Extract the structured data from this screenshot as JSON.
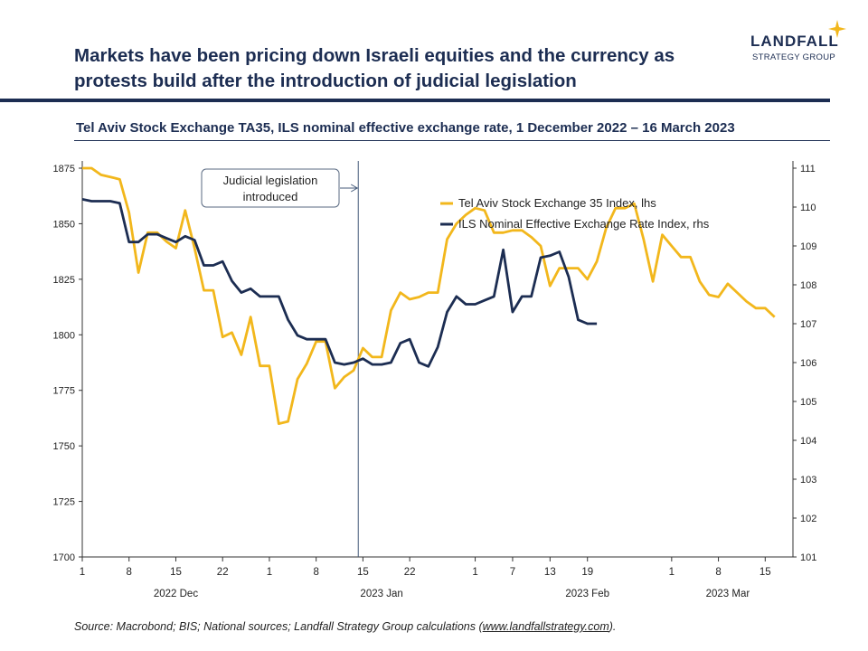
{
  "headline": {
    "line1": "Markets have been pricing down Israeli equities and the currency as",
    "line2": "protests build after the introduction of judicial legislation"
  },
  "logo": {
    "name": "LANDFALL",
    "tagline": "STRATEGY GROUP",
    "accent": "#f2b71c"
  },
  "colors": {
    "navy": "#1c2d52",
    "ta35": "#f2b71c",
    "ils": "#1c2d52",
    "axis": "#333333"
  },
  "source": {
    "prefix": "Source: Macrobond; BIS; National sources; Landfall Strategy Group calculations (",
    "link": "www.landfallstrategy.com",
    "suffix": ")."
  },
  "chart_data": {
    "type": "line",
    "title": "Tel Aviv Stock Exchange TA35, ILS nominal effective exchange rate, 1 December 2022 – 16 March 2023",
    "ylabel": "",
    "ylabel_right": "",
    "x_tick_labels": [
      "1",
      "8",
      "15",
      "22",
      "1",
      "8",
      "15",
      "22",
      "1",
      "7",
      "13",
      "19",
      "1",
      "8",
      "15"
    ],
    "x_tick_index": [
      0,
      5,
      10,
      15,
      20,
      25,
      30,
      35,
      42,
      46,
      50,
      54,
      63,
      68,
      73
    ],
    "month_labels": [
      {
        "label": "2022 Dec",
        "index": 10
      },
      {
        "label": "2023 Jan",
        "index": 32
      },
      {
        "label": "2023 Feb",
        "index": 54
      },
      {
        "label": "2023 Mar",
        "index": 69
      }
    ],
    "ylim_left": [
      1700,
      1875
    ],
    "yticks_left": [
      1700,
      1725,
      1750,
      1775,
      1800,
      1825,
      1850,
      1875
    ],
    "ylim_right": [
      101,
      111
    ],
    "yticks_right": [
      101,
      102,
      103,
      104,
      105,
      106,
      107,
      108,
      109,
      110,
      111
    ],
    "annotation": {
      "text_line1": "Judicial legislation",
      "text_line2": "introduced",
      "index": 29.5
    },
    "legend_position": "top-right",
    "series": [
      {
        "name": "Tel Aviv Stock Exchange 35 Index, lhs",
        "axis": "left",
        "values": [
          1875,
          1875,
          1872,
          1871,
          1870,
          1855,
          1828,
          1846,
          1846,
          1842,
          1839,
          1856,
          1839,
          1820,
          1820,
          1799,
          1801,
          1791,
          1808,
          1786,
          1786,
          1760,
          1761,
          1780,
          1787,
          1797,
          1797,
          1776,
          1781,
          1784,
          1794,
          1790,
          1790,
          1811,
          1819,
          1816,
          1817,
          1819,
          1819,
          1843,
          1850,
          1854,
          1857,
          1856,
          1846,
          1846,
          1847,
          1847,
          1844,
          1840,
          1822,
          1830,
          1830,
          1830,
          1825,
          1833,
          1848,
          1857,
          1857,
          1859,
          1843,
          1824,
          1845,
          1840,
          1835,
          1835,
          1824,
          1818,
          1817,
          1823,
          1819,
          1815,
          1812,
          1812,
          1808
        ]
      },
      {
        "name": "ILS Nominal Effective Exchange Rate Index, rhs",
        "axis": "right",
        "values": [
          110.2,
          110.15,
          110.15,
          110.15,
          110.1,
          109.1,
          109.1,
          109.3,
          109.3,
          109.2,
          109.1,
          109.25,
          109.15,
          108.5,
          108.5,
          108.6,
          108.1,
          107.8,
          107.9,
          107.7,
          107.7,
          107.7,
          107.1,
          106.7,
          106.6,
          106.6,
          106.6,
          106.0,
          105.95,
          106.0,
          106.1,
          105.95,
          105.95,
          106.0,
          106.5,
          106.6,
          106.0,
          105.9,
          106.4,
          107.3,
          107.7,
          107.5,
          107.5,
          107.6,
          107.7,
          108.9,
          107.3,
          107.7,
          107.7,
          108.7,
          108.75,
          108.85,
          108.2,
          107.1,
          107.0,
          107.0
        ]
      }
    ]
  }
}
